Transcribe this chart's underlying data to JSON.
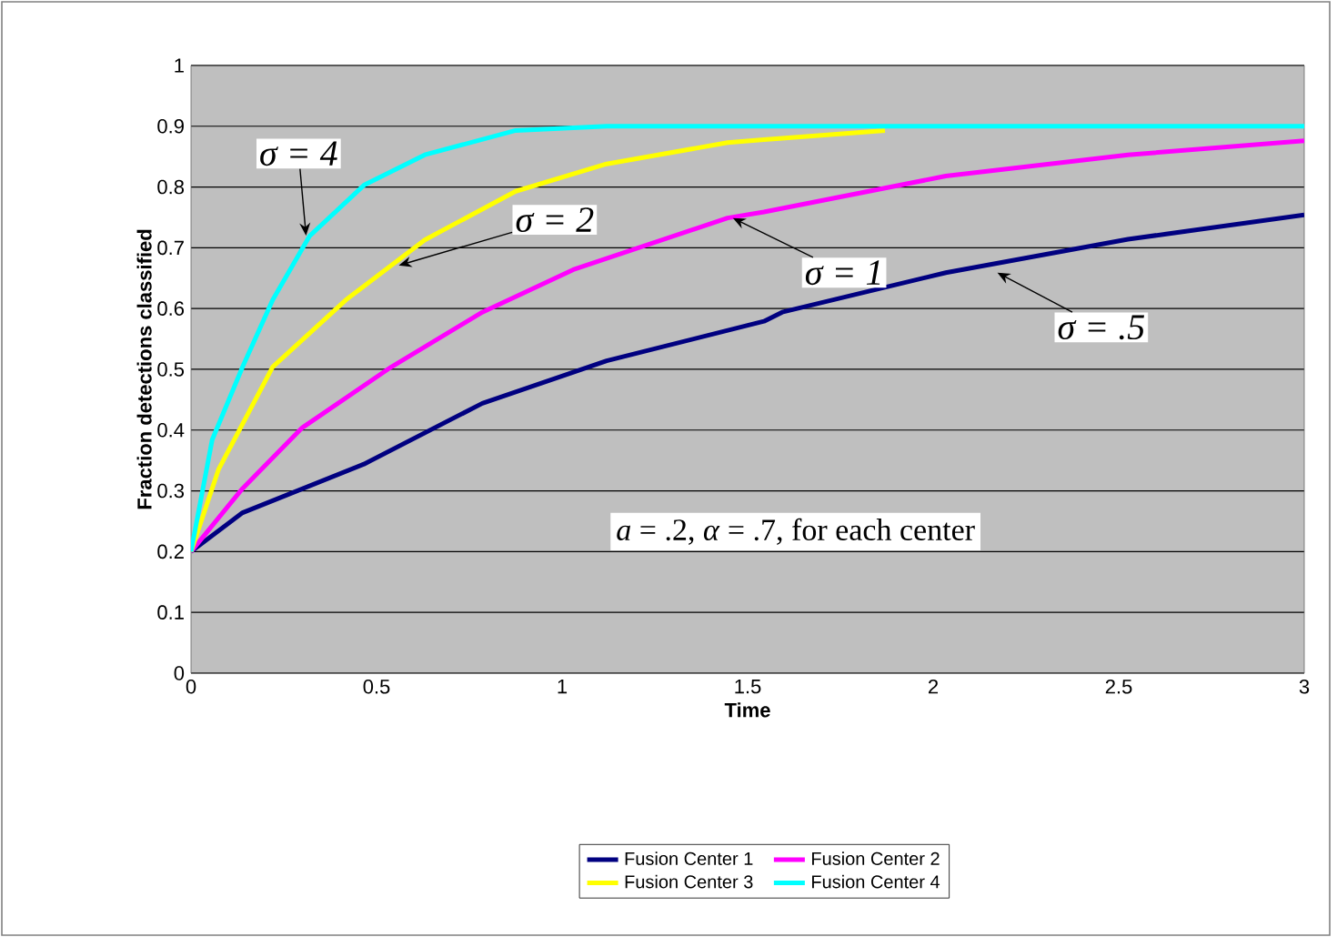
{
  "chart_data": {
    "type": "line",
    "xlabel": "Time",
    "ylabel": "Fraction detections classified",
    "xlim": [
      0,
      3
    ],
    "ylim": [
      0,
      1
    ],
    "xticks": [
      0,
      0.5,
      1,
      1.5,
      2,
      2.5,
      3
    ],
    "yticks": [
      0,
      0.1,
      0.2,
      0.3,
      0.4,
      0.5,
      0.6,
      0.7,
      0.8,
      0.9,
      1
    ],
    "grid": "y",
    "legend": "bottom",
    "marker": "none",
    "line_style": "solid",
    "series": [
      {
        "name": "Fusion Center 1",
        "color": "#000080",
        "x": [
          0,
          0.139,
          0.466,
          0.785,
          1.12,
          1.544,
          1.593,
          2.034,
          2.525,
          3
        ],
        "values": [
          0.2,
          0.264,
          0.344,
          0.444,
          0.514,
          0.579,
          0.594,
          0.659,
          0.714,
          0.754
        ]
      },
      {
        "name": "Fusion Center 2",
        "color": "#ff00ff",
        "x": [
          0,
          0.139,
          0.3,
          0.54,
          0.785,
          1.03,
          1.446,
          1.544,
          2.034,
          2.525,
          3
        ],
        "values": [
          0.2,
          0.304,
          0.404,
          0.504,
          0.594,
          0.664,
          0.749,
          0.759,
          0.818,
          0.853,
          0.876
        ]
      },
      {
        "name": "Fusion Center 3",
        "color": "#ffff00",
        "x": [
          0,
          0.074,
          0.22,
          0.417,
          0.63,
          0.875,
          1.12,
          1.446,
          1.544,
          1.87
        ],
        "values": [
          0.2,
          0.335,
          0.504,
          0.614,
          0.713,
          0.793,
          0.838,
          0.873,
          0.878,
          0.893
        ]
      },
      {
        "name": "Fusion Center 4",
        "color": "#00ffff",
        "x": [
          0,
          0.057,
          0.139,
          0.22,
          0.319,
          0.466,
          0.63,
          0.875,
          1.12,
          3
        ],
        "values": [
          0.2,
          0.384,
          0.504,
          0.614,
          0.719,
          0.803,
          0.853,
          0.893,
          0.9,
          0.9
        ]
      }
    ],
    "annotations": [
      {
        "text": "σ = 4",
        "x": 0.31,
        "y": 0.72
      },
      {
        "text": "σ = 2",
        "x": 0.56,
        "y": 0.671
      },
      {
        "text": "σ = 1",
        "x": 1.46,
        "y": 0.749
      },
      {
        "text": "σ = .5",
        "x": 2.173,
        "y": 0.659
      },
      "*a* = .2, *α* = .7, for each center"
    ]
  }
}
